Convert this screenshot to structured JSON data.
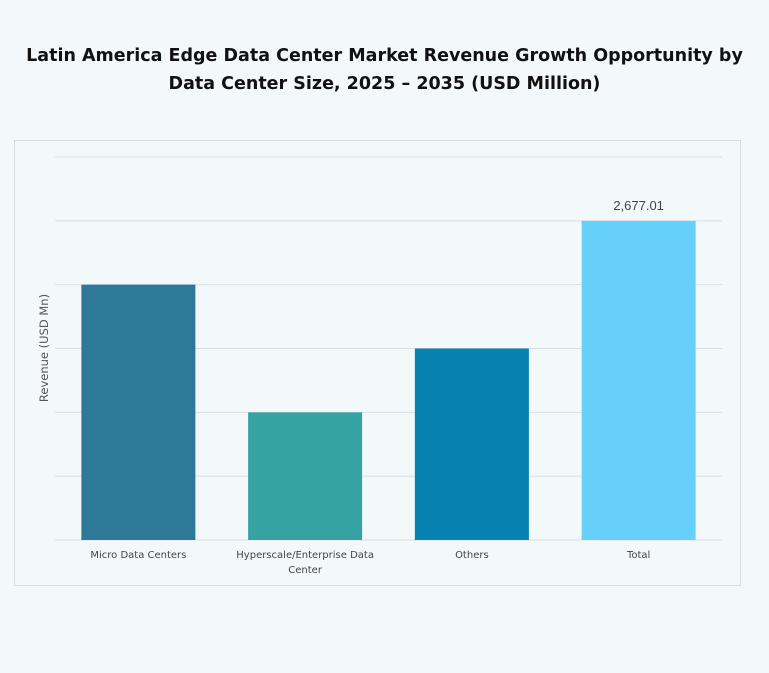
{
  "chart_data": {
    "type": "bar",
    "title": "Latin America Edge Data Center Market Revenue Growth Opportunity by Data Center Size, 2025 – 2035 (USD Million)",
    "xlabel": "",
    "ylabel": "Revenue (USD Mn)",
    "categories": [
      "Micro Data Centers",
      "Hyperscale/Enterprise Data Center",
      "Others",
      "Total"
    ],
    "values": [
      2141.6,
      1070.8,
      1606.2,
      2677.01
    ],
    "data_labels": [
      "",
      "",
      "",
      "2,677.01"
    ],
    "colors": [
      "#2e7898",
      "#36a3a3",
      "#0681b0",
      "#66d0fb"
    ],
    "ylim": [
      0,
      3212.4
    ],
    "grid": true,
    "ytick_labels_shown": false
  }
}
